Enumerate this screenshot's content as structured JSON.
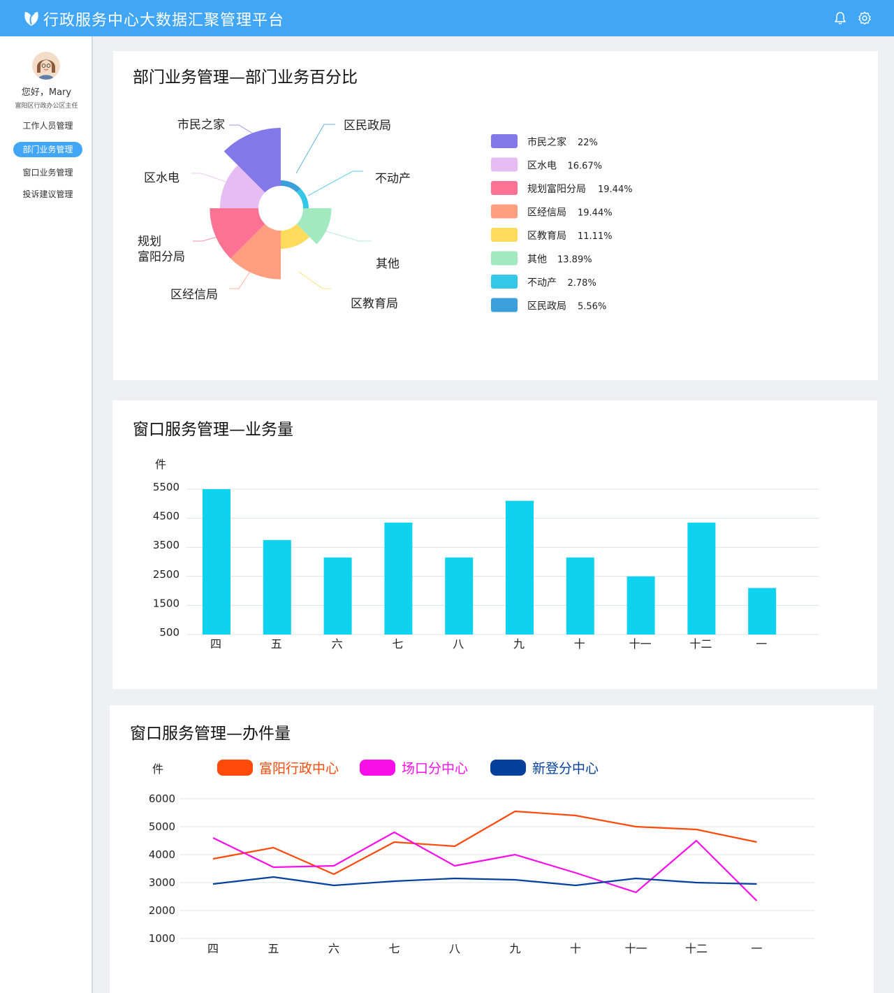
{
  "header": {
    "title": "行政服务中心大数据汇聚管理平台"
  },
  "sidebar": {
    "greeting": "您好，Mary",
    "role": "富阳区行政办公区主任",
    "items": [
      {
        "label": "工作人员管理",
        "active": false
      },
      {
        "label": "部门业务管理",
        "active": true
      },
      {
        "label": "窗口业务管理",
        "active": false
      },
      {
        "label": "投诉建议管理",
        "active": false
      }
    ]
  },
  "colors": {
    "header": "#42a6f7",
    "bar": "#0fd3ee"
  },
  "chart_data": [
    {
      "type": "pie",
      "variant": "nightingale-rose",
      "title": "部门业务管理—部门业务百分比",
      "slices": [
        {
          "name": "区民政局",
          "label": "区民政局",
          "legend_name": "区民政局",
          "legend_value": "5.56%",
          "value": 5.56,
          "color": "#3a9fda"
        },
        {
          "name": "不动产",
          "label": "不动产",
          "legend_name": "不动产",
          "legend_value": "2.78%",
          "value": 2.78,
          "color": "#35c7e8"
        },
        {
          "name": "其他",
          "label": "其他",
          "legend_name": "其他",
          "legend_value": "13.89%",
          "value": 13.89,
          "color": "#a3e9c0"
        },
        {
          "name": "区教育局",
          "label": "区教育局",
          "legend_name": "区教育局",
          "legend_value": "11.11%",
          "value": 11.11,
          "color": "#ffdb5c"
        },
        {
          "name": "区经信局",
          "label": "区经信局",
          "legend_name": "区经信局",
          "legend_value": "19.44%",
          "value": 19.44,
          "color": "#ff9f7f"
        },
        {
          "name": "规划富阳分局",
          "label": "规划\n富阳分局",
          "legend_name": "规划富阳分局",
          "legend_value": "19.44%",
          "value": 19.44,
          "color": "#fb7293"
        },
        {
          "name": "区水电",
          "label": "区水电",
          "legend_name": "区水电",
          "legend_value": "16.67%",
          "value": 16.67,
          "color": "#e7bcf3"
        },
        {
          "name": "市民之家",
          "label": "市民之家",
          "legend_name": "市民之家",
          "legend_value": "22%",
          "value": 22,
          "color": "#8378ea"
        }
      ],
      "legend_order": [
        "市民之家",
        "区水电",
        "规划富阳分局",
        "区经信局",
        "区教育局",
        "其他",
        "不动产",
        "区民政局"
      ],
      "legend_position": "right"
    },
    {
      "type": "bar",
      "title": "窗口服务管理—业务量",
      "ylabel": "件",
      "categories": [
        "四",
        "五",
        "六",
        "七",
        "八",
        "九",
        "十",
        "十一",
        "十二",
        "一"
      ],
      "values": [
        5500,
        3750,
        3150,
        4350,
        3150,
        5100,
        3150,
        2500,
        4350,
        2100
      ],
      "yticks": [
        500,
        1500,
        2500,
        3500,
        4500,
        5500
      ],
      "ylim": [
        500,
        5600
      ],
      "grid": true
    },
    {
      "type": "line",
      "title": "窗口服务管理—办件量",
      "ylabel": "件",
      "categories": [
        "四",
        "五",
        "六",
        "七",
        "八",
        "九",
        "十",
        "十一",
        "十二",
        "一"
      ],
      "yticks": [
        1000,
        2000,
        3000,
        4000,
        5000,
        6000
      ],
      "ylim": [
        1000,
        6000
      ],
      "grid": true,
      "legend_position": "top",
      "series": [
        {
          "name": "富阳行政中心",
          "color": "#fe4a0a",
          "values": [
            3850,
            4250,
            3300,
            4450,
            4300,
            5550,
            5400,
            5000,
            4900,
            4450
          ]
        },
        {
          "name": "场口分中心",
          "color": "#f90ee9",
          "values": [
            4600,
            3550,
            3600,
            4800,
            3600,
            4000,
            3350,
            2650,
            4500,
            2350
          ]
        },
        {
          "name": "新登分中心",
          "color": "#05409d",
          "values": [
            2950,
            3200,
            2900,
            3050,
            3150,
            3100,
            2900,
            3150,
            3000,
            2950
          ]
        }
      ]
    }
  ]
}
